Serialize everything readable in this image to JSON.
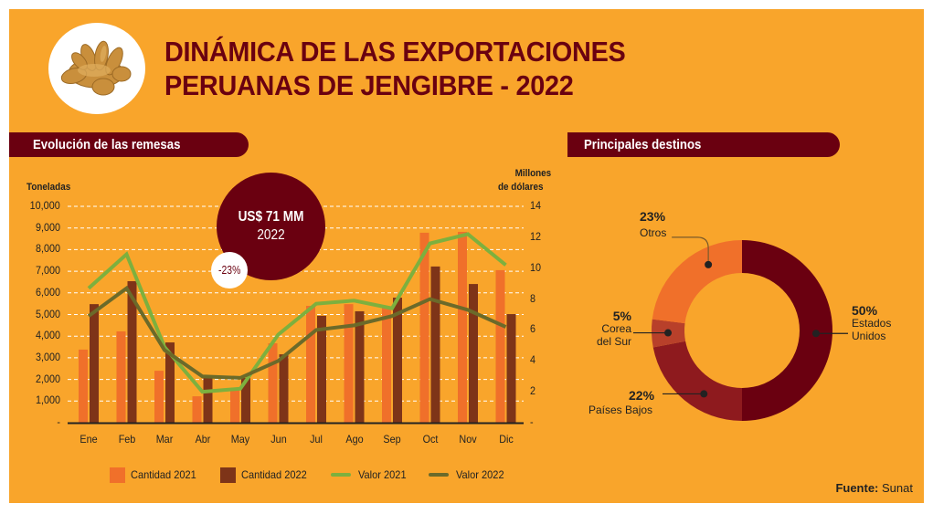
{
  "header": {
    "title_line1": "DINÁMICA DE LAS EXPORTACIONES",
    "title_line2": "PERUANAS DE JENGIBRE - 2022",
    "logo": "ginger-root-image"
  },
  "sections": {
    "left_title": "Evolución de las remesas",
    "right_title": "Principales destinos"
  },
  "highlight": {
    "amount": "US$ 71 MM",
    "year": "2022",
    "change": "-23%"
  },
  "source": {
    "label": "Fuente:",
    "value": "Sunat"
  },
  "colors": {
    "background": "#F9A52B",
    "brand_dark": "#6A0010",
    "cantidad_2021": "#F0702A",
    "cantidad_2022": "#7E3418",
    "valor_2021": "#7DB03E",
    "valor_2022": "#6B6A2A",
    "donut_estados_unidos": "#6A0010",
    "donut_paises_bajos": "#8E1A1E",
    "donut_corea": "#B8402A",
    "donut_otros": "#F0702A"
  },
  "chart_data": [
    {
      "type": "bar",
      "title": "Evolución de las remesas",
      "xlabel": "",
      "ylabel": "Toneladas",
      "y2label": "Millones de dólares",
      "categories": [
        "Ene",
        "Feb",
        "Mar",
        "Abr",
        "May",
        "Jun",
        "Jul",
        "Ago",
        "Sep",
        "Oct",
        "Nov",
        "Dic"
      ],
      "ylim": [
        0,
        10000
      ],
      "y2lim": [
        0,
        14
      ],
      "yticks": [
        "-",
        "1,000",
        "2,000",
        "3,000",
        "4,000",
        "5,000",
        "6,000",
        "7,000",
        "8,000",
        "9,000",
        "10,000"
      ],
      "y2ticks": [
        "-",
        "2",
        "4",
        "6",
        "8",
        "10",
        "12",
        "14"
      ],
      "grid": true,
      "legend_position": "bottom",
      "series": [
        {
          "name": "Cantidad 2021",
          "kind": "bar",
          "axis": "left",
          "values": [
            3380,
            4220,
            2400,
            1220,
            1520,
            3670,
            5400,
            5480,
            5360,
            8780,
            8820,
            7050
          ]
        },
        {
          "name": "Cantidad 2022",
          "kind": "bar",
          "axis": "left",
          "values": [
            5480,
            6540,
            3710,
            2110,
            2070,
            3160,
            4940,
            5150,
            5780,
            7220,
            6410,
            5020
          ]
        },
        {
          "name": "Valor 2021",
          "kind": "line",
          "axis": "right",
          "values": [
            8.7,
            10.9,
            4.9,
            2.0,
            2.2,
            5.7,
            7.7,
            7.9,
            7.4,
            11.6,
            12.2,
            10.2
          ]
        },
        {
          "name": "Valor 2022",
          "kind": "line",
          "axis": "right",
          "values": [
            6.9,
            8.7,
            4.7,
            3.0,
            2.9,
            4.0,
            6.0,
            6.3,
            6.9,
            8.0,
            7.3,
            6.2
          ]
        }
      ],
      "annotations": [
        "US$ 71 MM 2022",
        "-23%"
      ]
    },
    {
      "type": "pie",
      "variant": "donut",
      "title": "Principales destinos",
      "slices": [
        {
          "label": "Estados Unidos",
          "value": 50,
          "display": "50%"
        },
        {
          "label": "Países Bajos",
          "value": 22,
          "display": "22%"
        },
        {
          "label": "Corea del Sur",
          "value": 5,
          "display": "5%"
        },
        {
          "label": "Otros",
          "value": 23,
          "display": "23%"
        }
      ]
    }
  ]
}
